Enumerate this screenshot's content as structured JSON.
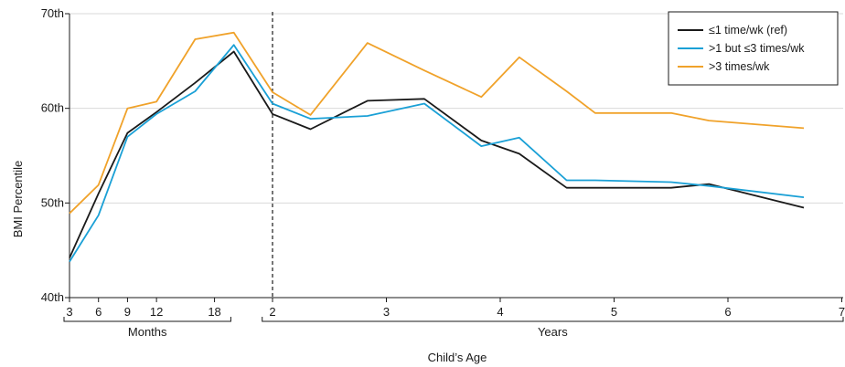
{
  "chart_data": {
    "type": "line",
    "ylabel": "BMI Percentile",
    "xlabel": "Child’s Age",
    "ylim": [
      40,
      70
    ],
    "y_ticks": [
      {
        "value": 40,
        "label": "40th"
      },
      {
        "value": 50,
        "label": "50th"
      },
      {
        "value": 60,
        "label": "60th"
      },
      {
        "value": 70,
        "label": "70th"
      }
    ],
    "xlim_months": [
      3,
      84
    ],
    "x_ticks": [
      {
        "value": 3,
        "label": "3"
      },
      {
        "value": 6,
        "label": "6"
      },
      {
        "value": 9,
        "label": "9"
      },
      {
        "value": 12,
        "label": "12"
      },
      {
        "value": 18,
        "label": "18"
      },
      {
        "value": 24,
        "label": "2"
      },
      {
        "value": 36,
        "label": "3"
      },
      {
        "value": 48,
        "label": "4"
      },
      {
        "value": 60,
        "label": "5"
      },
      {
        "value": 72,
        "label": "6"
      },
      {
        "value": 84,
        "label": "7"
      }
    ],
    "x_groups": [
      {
        "label": "Months",
        "from": 3,
        "to": 19.5
      },
      {
        "label": "Years",
        "from": 23.5,
        "to": 84
      }
    ],
    "reference_line_x": 24,
    "grid": "horizontal",
    "legend_position": "top-right",
    "series": [
      {
        "name": "≤1 time/wk (ref)",
        "color": "#1a1a1a",
        "x": [
          3,
          6,
          9,
          12,
          16,
          20,
          24,
          28,
          34,
          40,
          46,
          50,
          55,
          58,
          66,
          70,
          80
        ],
        "y": [
          44.2,
          51,
          57.4,
          59.6,
          62.7,
          66,
          59.4,
          57.8,
          60.8,
          61,
          56.6,
          55.2,
          51.6,
          51.6,
          51.6,
          52,
          49.5
        ]
      },
      {
        "name": ">1 but ≤3 times/wk",
        "color": "#1aa0d6",
        "x": [
          3,
          6,
          9,
          12,
          16,
          20,
          24,
          28,
          34,
          40,
          46,
          50,
          55,
          58,
          66,
          70,
          80
        ],
        "y": [
          43.8,
          48.7,
          57,
          59.4,
          61.8,
          66.7,
          60.5,
          58.9,
          59.2,
          60.5,
          56,
          56.9,
          52.4,
          52.4,
          52.2,
          51.8,
          50.6
        ]
      },
      {
        "name": ">3 times/wk",
        "color": "#f0a22a",
        "x": [
          3,
          6,
          9,
          12,
          16,
          20,
          24,
          28,
          34,
          40,
          46,
          50,
          55,
          58,
          66,
          70,
          80
        ],
        "y": [
          48.9,
          51.9,
          60,
          60.7,
          67.3,
          68,
          61.7,
          59.3,
          66.9,
          64,
          61.2,
          65.4,
          61.8,
          59.5,
          59.5,
          58.7,
          57.9
        ]
      }
    ]
  }
}
